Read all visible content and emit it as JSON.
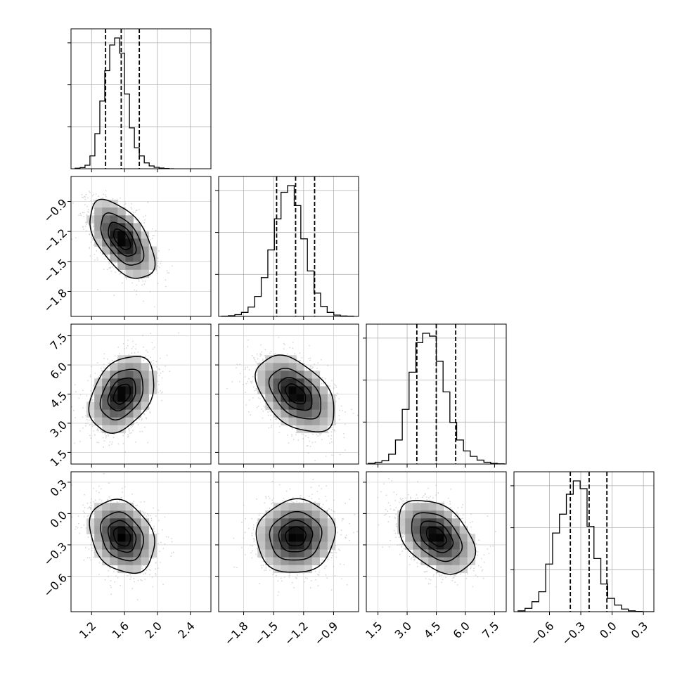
{
  "chart_data": {
    "type": "corner",
    "parameters": 4,
    "title": "",
    "grid": true,
    "legend": "none",
    "colors": {
      "hist": "#000000",
      "grid": "#b0b0b0",
      "scatter": "#b5b5b5",
      "density_dark": "#000000",
      "density_light": "#ffffff"
    },
    "params": [
      {
        "label": "",
        "range": [
          0.95,
          2.65
        ],
        "ticks": [
          1.2,
          1.6,
          2.0,
          2.4
        ],
        "tick_labels": [
          "1.2",
          "1.6",
          "2.0",
          "2.4"
        ],
        "quantiles": [
          1.37,
          1.56,
          1.78
        ],
        "mean": 1.57,
        "std": 0.19,
        "hist_edges_start": 1.0,
        "hist_bin_width": 0.06,
        "hist_counts": [
          2,
          5,
          15,
          55,
          150,
          290,
          420,
          530,
          560,
          495,
          320,
          175,
          90,
          55,
          25,
          12,
          6,
          3,
          1,
          0
        ]
      },
      {
        "label": "",
        "range": [
          -2.05,
          -0.65
        ],
        "ticks": [
          -1.8,
          -1.5,
          -1.2,
          -0.9
        ],
        "tick_labels": [
          "−1.8",
          "−1.5",
          "−1.2",
          "−0.9"
        ],
        "quantiles": [
          -1.47,
          -1.28,
          -1.09
        ],
        "mean": -1.28,
        "std": 0.19,
        "hist_edges_start": -2.02,
        "hist_bin_width": 0.066,
        "hist_counts": [
          1,
          3,
          8,
          18,
          42,
          90,
          175,
          300,
          440,
          560,
          590,
          500,
          350,
          205,
          105,
          45,
          18,
          6,
          2,
          1
        ]
      },
      {
        "label": "",
        "range": [
          0.9,
          8.1
        ],
        "ticks": [
          1.5,
          3.0,
          4.5,
          6.0,
          7.5
        ],
        "tick_labels": [
          "1.5",
          "3.0",
          "4.5",
          "6.0",
          "7.5"
        ],
        "quantiles": [
          3.5,
          4.5,
          5.5
        ],
        "mean": 4.5,
        "std": 0.95,
        "hist_edges_start": 1.0,
        "hist_bin_width": 0.35,
        "hist_counts": [
          3,
          8,
          15,
          45,
          110,
          250,
          420,
          555,
          598,
          585,
          470,
          330,
          190,
          110,
          60,
          35,
          18,
          8,
          3,
          1
        ]
      },
      {
        "label": "",
        "range": [
          -0.94,
          0.4
        ],
        "ticks": [
          -0.6,
          -0.3,
          0.0,
          0.3
        ],
        "tick_labels": [
          "−0.6",
          "−0.3",
          "0.0",
          "0.3"
        ],
        "quantiles": [
          -0.4,
          -0.22,
          -0.05
        ],
        "mean": -0.22,
        "std": 0.17,
        "hist_edges_start": -0.9,
        "hist_bin_width": 0.066,
        "hist_counts": [
          4,
          15,
          45,
          90,
          215,
          355,
          440,
          530,
          590,
          555,
          385,
          240,
          125,
          60,
          30,
          12,
          4,
          1,
          0,
          0
        ]
      }
    ],
    "pairs": [
      {
        "x": 0,
        "y": 1,
        "corr": -0.55
      },
      {
        "x": 0,
        "y": 2,
        "corr": 0.35
      },
      {
        "x": 1,
        "y": 2,
        "corr": -0.45
      },
      {
        "x": 0,
        "y": 3,
        "corr": -0.25
      },
      {
        "x": 1,
        "y": 3,
        "corr": 0.05
      },
      {
        "x": 2,
        "y": 3,
        "corr": -0.4
      }
    ],
    "contour_levels_sigma": [
      0.5,
      1.0,
      1.5,
      2.0
    ]
  }
}
